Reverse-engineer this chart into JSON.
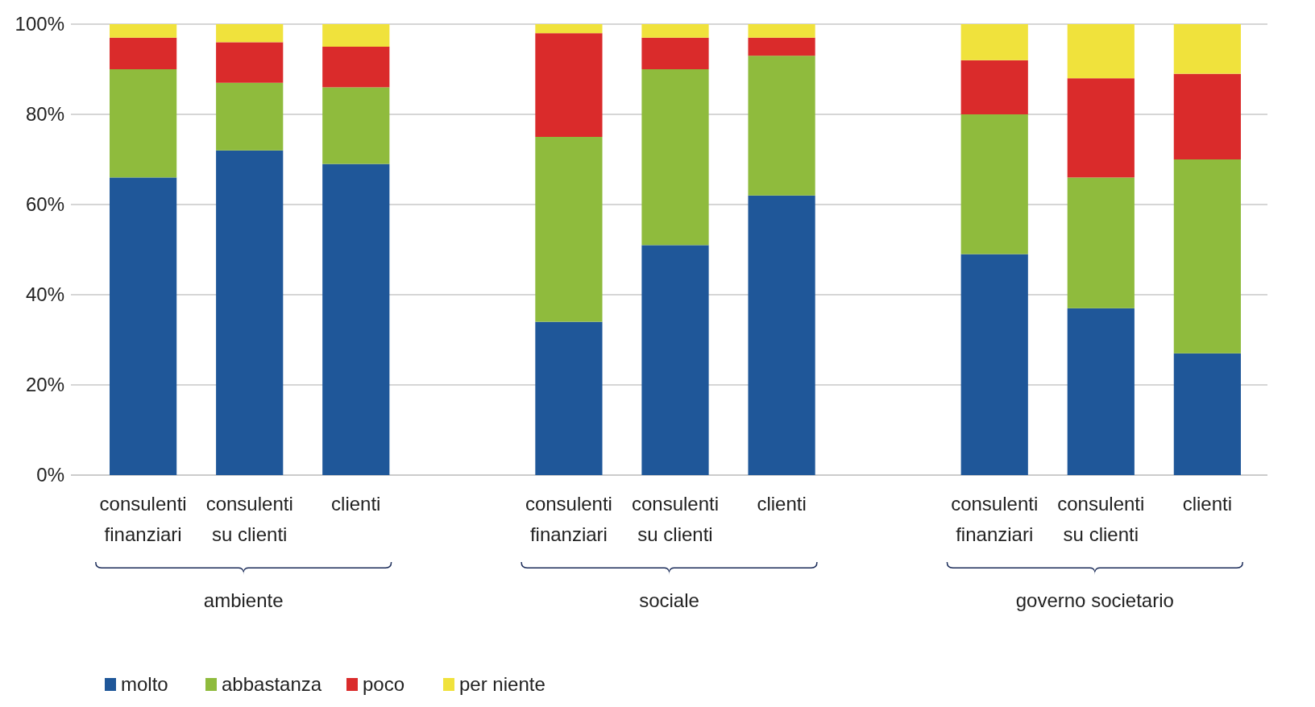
{
  "chart_data": {
    "type": "bar",
    "stacked": true,
    "categories": [
      "consulenti finanziari",
      "consulenti su clienti",
      "clienti",
      null,
      "consulenti finanziari",
      "consulenti su clienti",
      "clienti",
      null,
      "consulenti finanziari",
      "consulenti su clienti",
      "clienti"
    ],
    "series": [
      {
        "name": "molto",
        "color": "#1f5799",
        "values": [
          66,
          72,
          69,
          null,
          34,
          51,
          62,
          null,
          49,
          37,
          27
        ]
      },
      {
        "name": "abbastanza",
        "color": "#8fbb3d",
        "values": [
          24,
          15,
          17,
          null,
          41,
          39,
          31,
          null,
          31,
          29,
          43
        ]
      },
      {
        "name": "poco",
        "color": "#da2b2b",
        "values": [
          7,
          9,
          9,
          null,
          23,
          7,
          4,
          null,
          12,
          22,
          19
        ]
      },
      {
        "name": "per niente",
        "color": "#f0e23c",
        "values": [
          3,
          4,
          5,
          null,
          2,
          3,
          3,
          null,
          8,
          12,
          11
        ]
      }
    ],
    "ylim": [
      0,
      100
    ],
    "yticks": [
      {
        "value": 0,
        "label": "0%"
      },
      {
        "value": 20,
        "label": "20%"
      },
      {
        "value": 40,
        "label": "40%"
      },
      {
        "value": 60,
        "label": "60%"
      },
      {
        "value": 80,
        "label": "80%"
      },
      {
        "value": 100,
        "label": "100%"
      }
    ],
    "grid": "y",
    "legend": "bottom left",
    "annotations": [
      "ambiente",
      "sociale",
      "governo societario"
    ]
  }
}
